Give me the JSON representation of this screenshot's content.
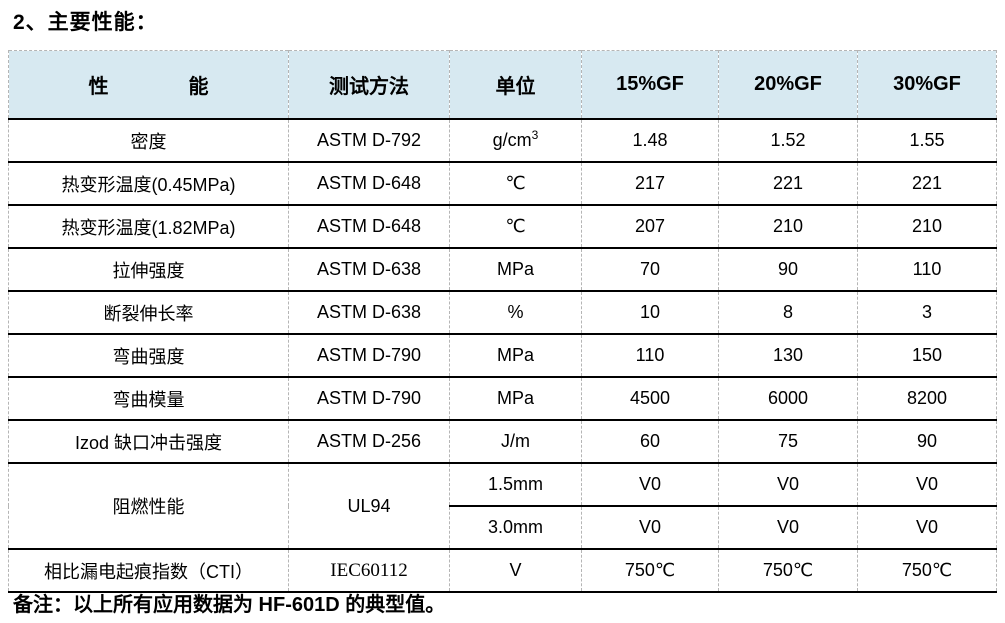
{
  "page": {
    "title": "2、主要性能：",
    "note": "备注：以上所有应用数据为 HF-601D 的典型值。"
  },
  "colors": {
    "header_bg": "#d7e9f1",
    "rule_line": "#000000",
    "grid_dash": "#b5b5b5",
    "text": "#000000"
  },
  "table": {
    "headers": [
      "性　　　　能",
      "测试方法",
      "单位",
      "15%GF",
      "20%GF",
      "30%GF"
    ],
    "rows": [
      {
        "cells": [
          {
            "text": "密度"
          },
          {
            "text": "ASTM D-792"
          },
          {
            "text": "g/cm",
            "sup": "3"
          },
          {
            "text": "1.48"
          },
          {
            "text": "1.52"
          },
          {
            "text": "1.55"
          }
        ]
      },
      {
        "cells": [
          {
            "text": "热变形温度(0.45MPa)"
          },
          {
            "text": "ASTM D-648"
          },
          {
            "text": "℃"
          },
          {
            "text": "217"
          },
          {
            "text": "221"
          },
          {
            "text": "221"
          }
        ]
      },
      {
        "cells": [
          {
            "text": "热变形温度(1.82MPa)"
          },
          {
            "text": "ASTM D-648"
          },
          {
            "text": "℃"
          },
          {
            "text": "207"
          },
          {
            "text": "210"
          },
          {
            "text": "210"
          }
        ]
      },
      {
        "cells": [
          {
            "text": "拉伸强度"
          },
          {
            "text": "ASTM D-638"
          },
          {
            "text": "MPa"
          },
          {
            "text": "70"
          },
          {
            "text": "90"
          },
          {
            "text": "110"
          }
        ]
      },
      {
        "cells": [
          {
            "text": "断裂伸长率"
          },
          {
            "text": "ASTM D-638"
          },
          {
            "text": "%"
          },
          {
            "text": "10"
          },
          {
            "text": "8"
          },
          {
            "text": "3"
          }
        ]
      },
      {
        "cells": [
          {
            "text": "弯曲强度"
          },
          {
            "text": "ASTM D-790"
          },
          {
            "text": "MPa"
          },
          {
            "text": "110"
          },
          {
            "text": "130"
          },
          {
            "text": "150"
          }
        ]
      },
      {
        "cells": [
          {
            "text": "弯曲模量"
          },
          {
            "text": "ASTM D-790"
          },
          {
            "text": "MPa"
          },
          {
            "text": "4500"
          },
          {
            "text": "6000"
          },
          {
            "text": "8200"
          }
        ]
      },
      {
        "cells": [
          {
            "text": "Izod 缺口冲击强度"
          },
          {
            "text": "ASTM D-256"
          },
          {
            "text": "J/m"
          },
          {
            "text": "60"
          },
          {
            "text": "75"
          },
          {
            "text": "90"
          }
        ]
      },
      {
        "cells": [
          {
            "text": "阻燃性能",
            "rowspan": 2
          },
          {
            "text": "UL94",
            "rowspan": 2
          },
          {
            "text": "1.5mm"
          },
          {
            "text": "V0"
          },
          {
            "text": "V0"
          },
          {
            "text": "V0"
          }
        ]
      },
      {
        "cells": [
          {
            "text": "3.0mm"
          },
          {
            "text": "V0"
          },
          {
            "text": "V0"
          },
          {
            "text": "V0"
          }
        ]
      },
      {
        "cells": [
          {
            "text": "相比漏电起痕指数（CTI）"
          },
          {
            "text": "IEC60112",
            "serif": true
          },
          {
            "text": "V"
          },
          {
            "text": "750℃"
          },
          {
            "text": "750℃"
          },
          {
            "text": "750℃"
          }
        ]
      }
    ]
  }
}
